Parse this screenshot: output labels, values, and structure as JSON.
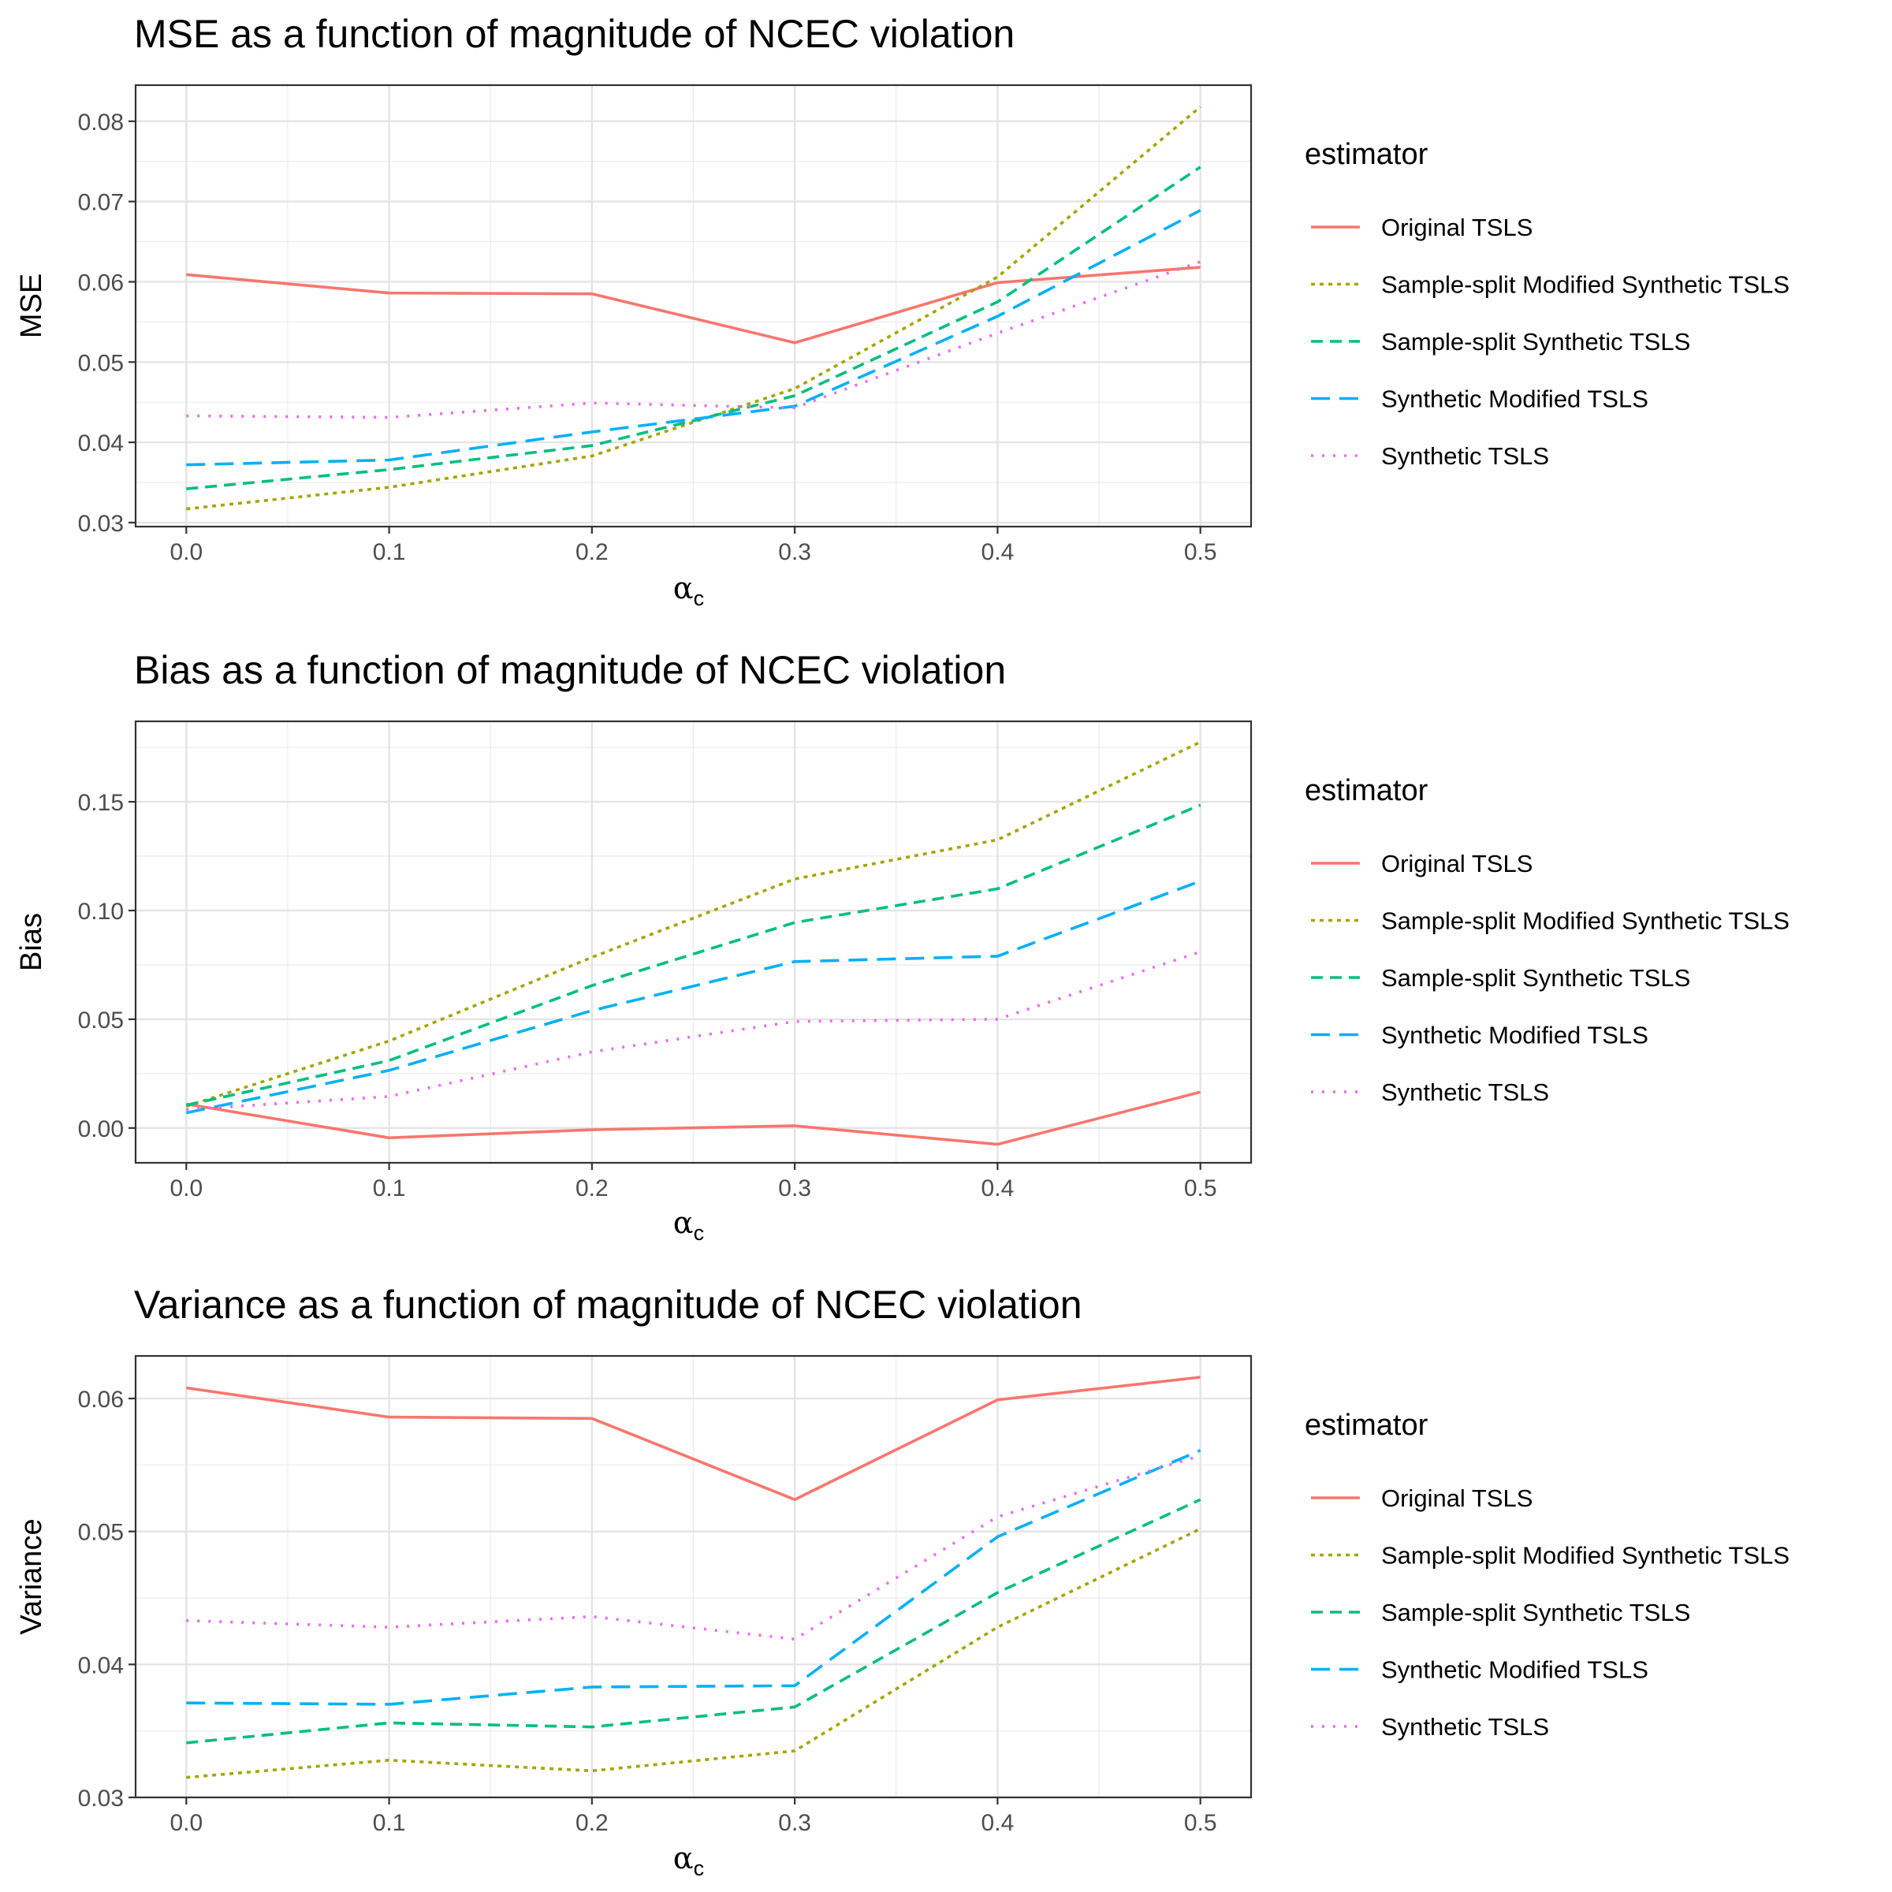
{
  "legend": {
    "title": "estimator",
    "entries": [
      {
        "name": "Original TSLS",
        "color": "#F8766D",
        "dash": "solid"
      },
      {
        "name": "Sample-split Modified Synthetic TSLS",
        "color": "#A3A500",
        "dash": "dotted-short"
      },
      {
        "name": "Sample-split Synthetic TSLS",
        "color": "#00BF7D",
        "dash": "dashed"
      },
      {
        "name": "Synthetic Modified TSLS",
        "color": "#00B0F6",
        "dash": "longdash"
      },
      {
        "name": "Synthetic TSLS",
        "color": "#E76BF3",
        "dash": "dotted"
      }
    ]
  },
  "chart_data": [
    {
      "type": "line",
      "title": "MSE as a function of magnitude of NCEC violation",
      "xlabel": "αc",
      "xlabel_main": "α",
      "xlabel_sub": "c",
      "ylabel": "MSE",
      "x": [
        0.0,
        0.1,
        0.2,
        0.3,
        0.4,
        0.5
      ],
      "xlim": [
        -0.025,
        0.525
      ],
      "ylim": [
        0.0295,
        0.0845
      ],
      "x_ticks": [
        "0.0",
        "0.1",
        "0.2",
        "0.3",
        "0.4",
        "0.5"
      ],
      "y_ticks": [
        0.03,
        0.04,
        0.05,
        0.06,
        0.07,
        0.08
      ],
      "y_tick_labels": [
        "0.03",
        "0.04",
        "0.05",
        "0.06",
        "0.07",
        "0.08"
      ],
      "grid": true,
      "legend_position": "right",
      "series": [
        {
          "name": "Original TSLS",
          "values": [
            0.0609,
            0.0586,
            0.0585,
            0.0524,
            0.0599,
            0.0618
          ]
        },
        {
          "name": "Sample-split Modified Synthetic TSLS",
          "values": [
            0.0317,
            0.0344,
            0.0383,
            0.0467,
            0.0606,
            0.0818
          ]
        },
        {
          "name": "Sample-split Synthetic TSLS",
          "values": [
            0.0342,
            0.0366,
            0.0396,
            0.0458,
            0.0575,
            0.0743
          ]
        },
        {
          "name": "Synthetic Modified TSLS",
          "values": [
            0.0372,
            0.0378,
            0.0413,
            0.0445,
            0.0557,
            0.0689
          ]
        },
        {
          "name": "Synthetic TSLS",
          "values": [
            0.0433,
            0.0431,
            0.0449,
            0.0443,
            0.0536,
            0.0625
          ]
        }
      ]
    },
    {
      "type": "line",
      "title": "Bias as a function of magnitude of NCEC violation",
      "xlabel": "αc",
      "xlabel_main": "α",
      "xlabel_sub": "c",
      "ylabel": "Bias",
      "x": [
        0.0,
        0.1,
        0.2,
        0.3,
        0.4,
        0.5
      ],
      "xlim": [
        -0.025,
        0.525
      ],
      "ylim": [
        -0.016,
        0.187
      ],
      "x_ticks": [
        "0.0",
        "0.1",
        "0.2",
        "0.3",
        "0.4",
        "0.5"
      ],
      "y_ticks": [
        0.0,
        0.05,
        0.1,
        0.15
      ],
      "y_tick_labels": [
        "0.00",
        "0.05",
        "0.10",
        "0.15"
      ],
      "grid": true,
      "legend_position": "right",
      "series": [
        {
          "name": "Original TSLS",
          "values": [
            0.011,
            -0.0045,
            -0.0008,
            0.001,
            -0.0075,
            0.0165
          ]
        },
        {
          "name": "Sample-split Modified Synthetic TSLS",
          "values": [
            0.01,
            0.04,
            0.0785,
            0.1145,
            0.1325,
            0.1775
          ]
        },
        {
          "name": "Sample-split Synthetic TSLS",
          "values": [
            0.0105,
            0.031,
            0.0655,
            0.0945,
            0.11,
            0.1485
          ]
        },
        {
          "name": "Synthetic Modified TSLS",
          "values": [
            0.007,
            0.0265,
            0.054,
            0.0765,
            0.079,
            0.1135
          ]
        },
        {
          "name": "Synthetic TSLS",
          "values": [
            0.0085,
            0.0145,
            0.035,
            0.049,
            0.05,
            0.081
          ]
        }
      ]
    },
    {
      "type": "line",
      "title": "Variance as a function of magnitude of NCEC violation",
      "xlabel": "αc",
      "xlabel_main": "α",
      "xlabel_sub": "c",
      "ylabel": "Variance",
      "x": [
        0.0,
        0.1,
        0.2,
        0.3,
        0.4,
        0.5
      ],
      "xlim": [
        -0.025,
        0.525
      ],
      "ylim": [
        0.03,
        0.0632
      ],
      "x_ticks": [
        "0.0",
        "0.1",
        "0.2",
        "0.3",
        "0.4",
        "0.5"
      ],
      "y_ticks": [
        0.03,
        0.04,
        0.05,
        0.06
      ],
      "y_tick_labels": [
        "0.03",
        "0.04",
        "0.05",
        "0.06"
      ],
      "grid": true,
      "legend_position": "right",
      "series": [
        {
          "name": "Original TSLS",
          "values": [
            0.0608,
            0.0586,
            0.0585,
            0.0524,
            0.0599,
            0.0616
          ]
        },
        {
          "name": "Sample-split Modified Synthetic TSLS",
          "values": [
            0.0315,
            0.0328,
            0.032,
            0.0335,
            0.0428,
            0.0502
          ]
        },
        {
          "name": "Sample-split Synthetic TSLS",
          "values": [
            0.0341,
            0.0356,
            0.0353,
            0.0368,
            0.0454,
            0.0524
          ]
        },
        {
          "name": "Synthetic Modified TSLS",
          "values": [
            0.0371,
            0.037,
            0.0383,
            0.0384,
            0.0496,
            0.0561
          ]
        },
        {
          "name": "Synthetic TSLS",
          "values": [
            0.0433,
            0.0428,
            0.0436,
            0.0419,
            0.0511,
            0.0557
          ]
        }
      ]
    }
  ]
}
